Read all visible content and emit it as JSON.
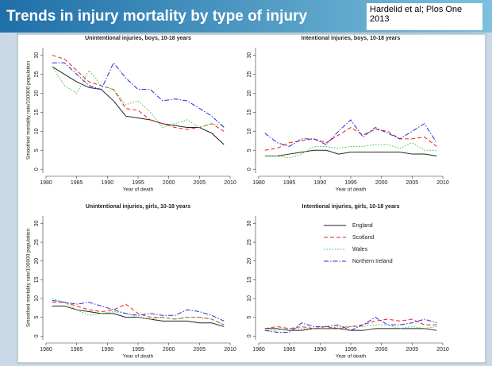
{
  "header": {
    "title": "Trends in injury mortality by type of injury",
    "citation": "Hardelid et al; Plos One 2013"
  },
  "chart_data": [
    {
      "type": "line",
      "title": "Unintentional injuries, boys, 10-18 years",
      "xlabel": "Year of death",
      "ylabel": "Smoothed mortality rate/100000 population",
      "x": [
        1981,
        1983,
        1985,
        1987,
        1989,
        1991,
        1993,
        1995,
        1997,
        1999,
        2001,
        2003,
        2005,
        2007,
        2009
      ],
      "xlim": [
        1980,
        2010
      ],
      "xticks": [
        1980,
        1985,
        1990,
        1995,
        2000,
        2005,
        2010
      ],
      "ylim": [
        -1,
        32
      ],
      "yticks": [
        0,
        5,
        10,
        15,
        20,
        25,
        30
      ],
      "series": [
        {
          "color": "#222222",
          "style": "solid",
          "values": [
            27,
            25,
            23,
            21.5,
            21,
            18,
            14,
            13.5,
            13,
            12,
            11.5,
            11,
            11,
            9.5,
            6.5
          ]
        },
        {
          "color": "#e8201c",
          "style": "dashed",
          "values": [
            30,
            29,
            26,
            23,
            22,
            21,
            16,
            15.5,
            13,
            12,
            11,
            10.5,
            11,
            12,
            10
          ]
        },
        {
          "color": "#3cc43c",
          "style": "dotted",
          "values": [
            27,
            22,
            20,
            26,
            22,
            21,
            17,
            18,
            15,
            11,
            12,
            13,
            11,
            12,
            11.5
          ]
        },
        {
          "color": "#2b2bd8",
          "style": "dashdot",
          "values": [
            28,
            28,
            25,
            22,
            21,
            28,
            24,
            21,
            21,
            18,
            18.5,
            18,
            16,
            14,
            11
          ]
        }
      ]
    },
    {
      "type": "line",
      "title": "Intentional injuries, boys, 10-18 years",
      "xlabel": "Year of death",
      "x": [
        1981,
        1983,
        1985,
        1987,
        1989,
        1991,
        1993,
        1995,
        1997,
        1999,
        2001,
        2003,
        2005,
        2007,
        2009
      ],
      "xlim": [
        1980,
        2010
      ],
      "xticks": [
        1980,
        1985,
        1990,
        1995,
        2000,
        2005,
        2010
      ],
      "ylim": [
        -1,
        32
      ],
      "yticks": [
        0,
        5,
        10,
        15,
        20,
        25,
        30
      ],
      "series": [
        {
          "color": "#222222",
          "style": "solid",
          "values": [
            3.5,
            3.5,
            4,
            4.5,
            5,
            5,
            4,
            4.5,
            4.5,
            4.5,
            4.5,
            4.5,
            4,
            4,
            3.5
          ]
        },
        {
          "color": "#e8201c",
          "style": "dashed",
          "values": [
            5,
            5.5,
            7,
            7.5,
            8,
            7,
            9,
            11,
            9,
            10.5,
            10,
            8,
            8,
            8.5,
            6
          ]
        },
        {
          "color": "#3cc43c",
          "style": "dotted",
          "values": [
            3.5,
            3.5,
            3,
            4,
            6,
            6,
            5.5,
            6,
            6,
            6.5,
            6.5,
            5.5,
            7,
            5,
            5
          ]
        },
        {
          "color": "#2b2bd8",
          "style": "dashdot",
          "values": [
            9.5,
            7,
            6,
            8,
            8,
            6.5,
            10,
            13,
            8.5,
            11,
            9.5,
            8,
            10,
            12,
            7
          ]
        }
      ]
    },
    {
      "type": "line",
      "title": "Unintentional injuries, girls, 10-18 years",
      "xlabel": "Year of death",
      "ylabel": "Smoothed mortality rate/100000 population",
      "x": [
        1981,
        1983,
        1985,
        1987,
        1989,
        1991,
        1993,
        1995,
        1997,
        1999,
        2001,
        2003,
        2005,
        2007,
        2009
      ],
      "xlim": [
        1980,
        2010
      ],
      "xticks": [
        1980,
        1985,
        1990,
        1995,
        2000,
        2005,
        2010
      ],
      "ylim": [
        -1,
        32
      ],
      "yticks": [
        0,
        5,
        10,
        15,
        20,
        25,
        30
      ],
      "series": [
        {
          "color": "#222222",
          "style": "solid",
          "values": [
            8,
            8,
            7,
            6.5,
            6,
            6,
            5,
            5,
            4.5,
            4,
            4,
            4,
            3.5,
            3.5,
            2.5
          ]
        },
        {
          "color": "#e8201c",
          "style": "dashed",
          "values": [
            9,
            9,
            8,
            7,
            6.5,
            7,
            8.5,
            6,
            5,
            5,
            4.5,
            5,
            5,
            4.5,
            3
          ]
        },
        {
          "color": "#3cc43c",
          "style": "dotted",
          "values": [
            10,
            9,
            7,
            5.5,
            6,
            6.5,
            6,
            5,
            4.5,
            5,
            4.5,
            5,
            5,
            4.5,
            3
          ]
        },
        {
          "color": "#2b2bd8",
          "style": "dashdot",
          "values": [
            9.5,
            9,
            8.5,
            9,
            8,
            7,
            6,
            5.5,
            6,
            5.5,
            5.5,
            7,
            6.5,
            5.5,
            4
          ]
        }
      ]
    },
    {
      "type": "line",
      "title": "Intentional injuries, girls, 10-18 years",
      "xlabel": "Year of death",
      "legend": "upper right",
      "x": [
        1981,
        1983,
        1985,
        1987,
        1989,
        1991,
        1993,
        1995,
        1997,
        1999,
        2001,
        2003,
        2005,
        2007,
        2009
      ],
      "xlim": [
        1980,
        2010
      ],
      "xticks": [
        1980,
        1985,
        1990,
        1995,
        2000,
        2005,
        2010
      ],
      "ylim": [
        -1,
        32
      ],
      "yticks": [
        0,
        5,
        10,
        15,
        20,
        25,
        30
      ],
      "series": [
        {
          "name": "England",
          "color": "#222222",
          "style": "solid",
          "values": [
            2,
            2,
            1.5,
            1.5,
            2,
            2,
            2,
            1.5,
            1.5,
            2,
            2,
            2,
            2,
            2,
            1.5
          ]
        },
        {
          "name": "Scotland",
          "color": "#e8201c",
          "style": "dashed",
          "values": [
            2,
            2.5,
            2,
            2.5,
            2,
            2.5,
            2,
            2.5,
            3,
            4,
            4.5,
            4,
            4.5,
            3,
            3
          ]
        },
        {
          "name": "Wales",
          "color": "#3cc43c",
          "style": "dotted",
          "values": [
            1.5,
            1.5,
            2,
            2,
            2,
            2,
            2.5,
            2.5,
            2.5,
            3,
            3,
            2,
            2.5,
            2,
            2.5
          ]
        },
        {
          "name": "Northern Ireland",
          "color": "#2b2bd8",
          "style": "dashdot",
          "values": [
            1.5,
            1,
            1,
            3.5,
            2.5,
            2.5,
            3,
            1.5,
            3,
            5,
            3,
            3,
            3.5,
            4.5,
            3.5
          ]
        }
      ]
    }
  ]
}
